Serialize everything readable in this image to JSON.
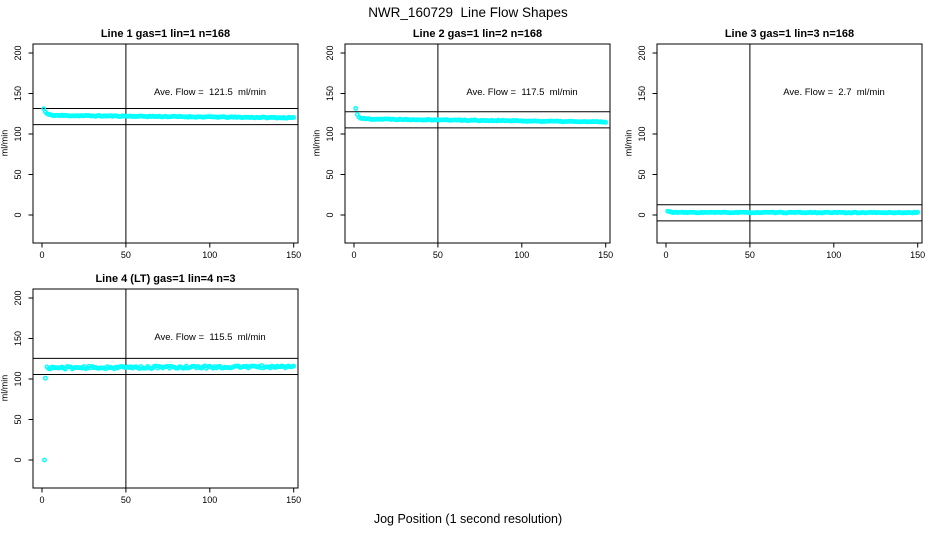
{
  "title": "NWR_160729  Line Flow Shapes",
  "colors": {
    "point": "#00FFFF",
    "axis": "#000000",
    "background": "#FFFFFF"
  },
  "chart_data": {
    "type": "scatter",
    "title": "NWR_160729  Line Flow Shapes",
    "xlabel": "Jog Position (1 second resolution)",
    "ylabel": "ml/min",
    "x_ticks": [
      0,
      50,
      100,
      150
    ],
    "y_ticks": [
      0,
      50,
      100,
      150,
      200
    ],
    "xlim": [
      -6,
      156
    ],
    "ylim": [
      -34,
      211
    ],
    "grid": "off",
    "legend": "none",
    "vline_x": 50,
    "ref_band_offset": 10,
    "point_marker": "open-circle",
    "plots": [
      {
        "title": "Line 1 gas=1 lin=1 n=168",
        "n": 168,
        "ave_flow": 121.5,
        "ave_flow_label": "Ave. Flow =  121.5  ml/min",
        "ref_lines": [
          131.5,
          111.5
        ],
        "seed": 11,
        "model": {
          "start": 131.3,
          "decay": 1.5,
          "flat_start": 123.0,
          "flat_end": 120.0,
          "noise": 0.6,
          "x_start": 1,
          "x_end": 150,
          "outliers": []
        }
      },
      {
        "title": "Line 2 gas=1 lin=2 n=168",
        "n": 168,
        "ave_flow": 117.5,
        "ave_flow_label": "Ave. Flow =  117.5  ml/min",
        "ref_lines": [
          127.5,
          107.5
        ],
        "seed": 22,
        "model": {
          "start": 131.5,
          "decay": 1.2,
          "flat_start": 118.8,
          "flat_end": 114.8,
          "noise": 0.6,
          "x_start": 1,
          "x_end": 150,
          "outliers": []
        }
      },
      {
        "title": "Line 3 gas=1 lin=3 n=168",
        "n": 168,
        "ave_flow": 2.7,
        "ave_flow_label": "Ave. Flow =  2.7  ml/min",
        "ref_lines": [
          12.7,
          -7.3
        ],
        "seed": 33,
        "model": {
          "start": 4.6,
          "decay": 2.0,
          "flat_start": 3.1,
          "flat_end": 2.9,
          "noise": 0.45,
          "x_start": 1,
          "x_end": 150,
          "outliers": []
        }
      },
      {
        "title": "Line 4 (LT) gas=1 lin=4 n=3",
        "n": 3,
        "ave_flow": 115.5,
        "ave_flow_label": "Ave. Flow =  115.5  ml/min",
        "ref_lines": [
          125.5,
          105.5
        ],
        "seed": 44,
        "model": {
          "start": 113.8,
          "decay": 1.0,
          "flat_start": 113.8,
          "flat_end": 115.2,
          "noise": 1.6,
          "x_start": 3,
          "x_end": 150,
          "outliers": [
            [
              1.5,
              0
            ],
            [
              2,
              101
            ]
          ]
        }
      }
    ]
  }
}
